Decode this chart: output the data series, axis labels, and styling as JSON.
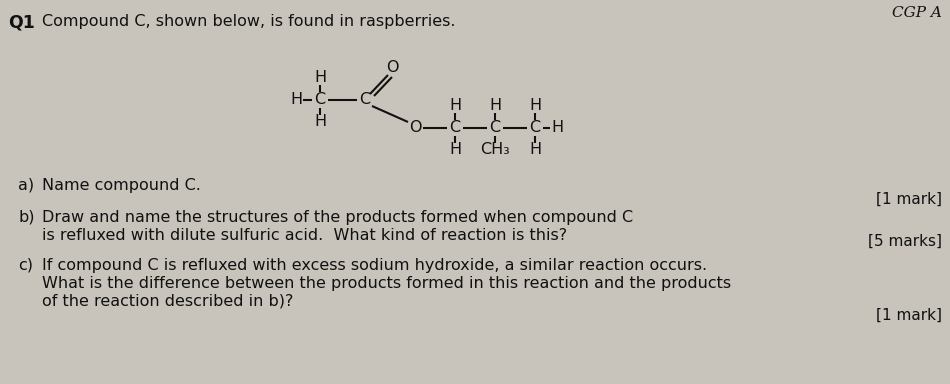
{
  "background_color": "#c8c4bc",
  "title_text": "CGP A",
  "q1_label": "Q1",
  "q1_text": "Compound C, shown below, is found in raspberries.",
  "part_a_label": "a)",
  "part_a_text": "Name compound C.",
  "part_a_mark": "[1 mark]",
  "part_b_label": "b)",
  "part_b_line1": "Draw and name the structures of the products formed when compound C",
  "part_b_line2": "is refluxed with dilute sulfuric acid.  What kind of reaction is this?",
  "part_b_mark": "[5 marks]",
  "part_c_label": "c)",
  "part_c_line1": "If compound C is refluxed with excess sodium hydroxide, a similar reaction occurs.",
  "part_c_line2": "What is the difference between the products formed in this reaction and the products",
  "part_c_line3": "of the reaction described in b)?",
  "part_c_mark": "[1 mark]",
  "text_color": "#111111",
  "font_size_main": 11.5,
  "font_size_mark": 11.0,
  "font_size_title": 11.0,
  "font_size_q": 12.5,
  "font_size_struct": 11.5
}
